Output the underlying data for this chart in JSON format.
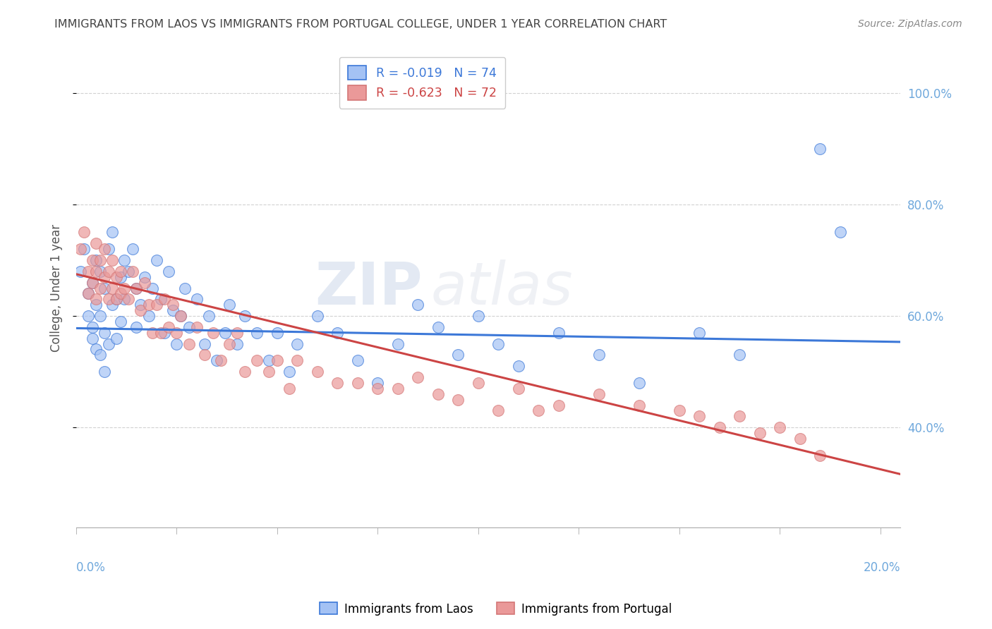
{
  "title": "IMMIGRANTS FROM LAOS VS IMMIGRANTS FROM PORTUGAL COLLEGE, UNDER 1 YEAR CORRELATION CHART",
  "source": "Source: ZipAtlas.com",
  "ylabel": "College, Under 1 year",
  "legend_label_laos": "Immigrants from Laos",
  "legend_label_portugal": "Immigrants from Portugal",
  "R_laos": -0.019,
  "N_laos": 74,
  "R_portugal": -0.623,
  "N_portugal": 72,
  "color_laos": "#a4c2f4",
  "color_portugal": "#ea9999",
  "line_color_laos": "#3c78d8",
  "line_color_portugal": "#cc4444",
  "background_color": "#ffffff",
  "grid_color": "#cccccc",
  "title_color": "#434343",
  "source_color": "#888888",
  "axis_label_color": "#6fa8dc",
  "watermark_color": "#d0d8e8",
  "xlim_min": 0.0,
  "xlim_max": 0.205,
  "ylim_min": 0.22,
  "ylim_max": 1.08,
  "yticks": [
    0.4,
    0.6,
    0.8,
    1.0
  ],
  "ytick_labels": [
    "40.0%",
    "60.0%",
    "80.0%",
    "100.0%"
  ],
  "laos_x": [
    0.001,
    0.002,
    0.003,
    0.003,
    0.004,
    0.004,
    0.004,
    0.005,
    0.005,
    0.005,
    0.006,
    0.006,
    0.006,
    0.007,
    0.007,
    0.007,
    0.008,
    0.008,
    0.009,
    0.009,
    0.01,
    0.01,
    0.011,
    0.011,
    0.012,
    0.012,
    0.013,
    0.014,
    0.015,
    0.015,
    0.016,
    0.017,
    0.018,
    0.019,
    0.02,
    0.021,
    0.022,
    0.023,
    0.024,
    0.025,
    0.026,
    0.027,
    0.028,
    0.03,
    0.032,
    0.033,
    0.035,
    0.037,
    0.038,
    0.04,
    0.042,
    0.045,
    0.048,
    0.05,
    0.053,
    0.055,
    0.06,
    0.065,
    0.07,
    0.075,
    0.08,
    0.085,
    0.09,
    0.095,
    0.1,
    0.105,
    0.11,
    0.12,
    0.13,
    0.14,
    0.155,
    0.165,
    0.185,
    0.19
  ],
  "laos_y": [
    0.68,
    0.72,
    0.64,
    0.6,
    0.66,
    0.58,
    0.56,
    0.7,
    0.62,
    0.54,
    0.68,
    0.6,
    0.53,
    0.65,
    0.57,
    0.5,
    0.72,
    0.55,
    0.75,
    0.62,
    0.63,
    0.56,
    0.67,
    0.59,
    0.7,
    0.63,
    0.68,
    0.72,
    0.65,
    0.58,
    0.62,
    0.67,
    0.6,
    0.65,
    0.7,
    0.63,
    0.57,
    0.68,
    0.61,
    0.55,
    0.6,
    0.65,
    0.58,
    0.63,
    0.55,
    0.6,
    0.52,
    0.57,
    0.62,
    0.55,
    0.6,
    0.57,
    0.52,
    0.57,
    0.5,
    0.55,
    0.6,
    0.57,
    0.52,
    0.48,
    0.55,
    0.62,
    0.58,
    0.53,
    0.6,
    0.55,
    0.51,
    0.57,
    0.53,
    0.48,
    0.57,
    0.53,
    0.9,
    0.75
  ],
  "portugal_x": [
    0.001,
    0.002,
    0.003,
    0.003,
    0.004,
    0.004,
    0.005,
    0.005,
    0.005,
    0.006,
    0.006,
    0.007,
    0.007,
    0.008,
    0.008,
    0.009,
    0.009,
    0.01,
    0.01,
    0.011,
    0.011,
    0.012,
    0.013,
    0.014,
    0.015,
    0.016,
    0.017,
    0.018,
    0.019,
    0.02,
    0.021,
    0.022,
    0.023,
    0.024,
    0.025,
    0.026,
    0.028,
    0.03,
    0.032,
    0.034,
    0.036,
    0.038,
    0.04,
    0.042,
    0.045,
    0.048,
    0.05,
    0.053,
    0.055,
    0.06,
    0.065,
    0.07,
    0.075,
    0.08,
    0.085,
    0.09,
    0.095,
    0.1,
    0.105,
    0.11,
    0.115,
    0.12,
    0.13,
    0.14,
    0.15,
    0.155,
    0.16,
    0.165,
    0.17,
    0.175,
    0.18,
    0.185
  ],
  "portugal_y": [
    0.72,
    0.75,
    0.68,
    0.64,
    0.7,
    0.66,
    0.73,
    0.68,
    0.63,
    0.7,
    0.65,
    0.72,
    0.67,
    0.68,
    0.63,
    0.7,
    0.65,
    0.67,
    0.63,
    0.68,
    0.64,
    0.65,
    0.63,
    0.68,
    0.65,
    0.61,
    0.66,
    0.62,
    0.57,
    0.62,
    0.57,
    0.63,
    0.58,
    0.62,
    0.57,
    0.6,
    0.55,
    0.58,
    0.53,
    0.57,
    0.52,
    0.55,
    0.57,
    0.5,
    0.52,
    0.5,
    0.52,
    0.47,
    0.52,
    0.5,
    0.48,
    0.48,
    0.47,
    0.47,
    0.49,
    0.46,
    0.45,
    0.48,
    0.43,
    0.47,
    0.43,
    0.44,
    0.46,
    0.44,
    0.43,
    0.42,
    0.4,
    0.42,
    0.39,
    0.4,
    0.38,
    0.35
  ]
}
